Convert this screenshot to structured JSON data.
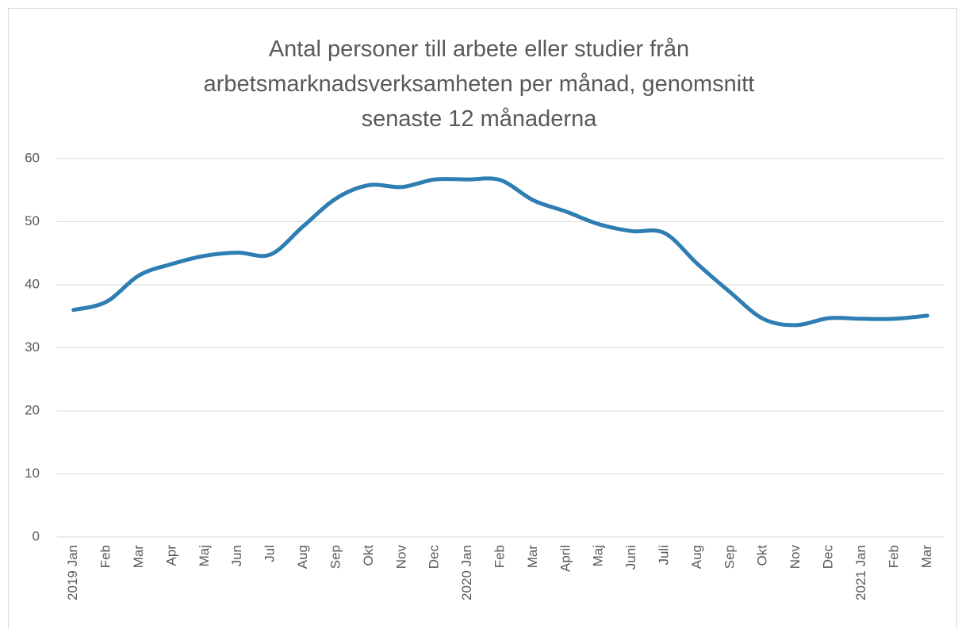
{
  "chart_data": {
    "type": "line",
    "title": "Antal personer till arbete eller studier från arbetsmarknadsverksamheten per månad, genomsnitt senaste 12 månaderna",
    "categories": [
      "2019 Jan",
      "Feb",
      "Mar",
      "Apr",
      "Maj",
      "Jun",
      "Jul",
      "Aug",
      "Sep",
      "Okt",
      "Nov",
      "Dec",
      "2020 Jan",
      "Feb",
      "Mar",
      "April",
      "Maj",
      "Juni",
      "Juli",
      "Aug",
      "Sep",
      "Okt",
      "Nov",
      "Dec",
      "2021 Jan",
      "Feb",
      "Mar"
    ],
    "values": [
      36.0,
      37.3,
      41.5,
      43.3,
      44.6,
      45.1,
      44.8,
      49.3,
      53.7,
      55.8,
      55.5,
      56.7,
      56.7,
      56.6,
      53.4,
      51.6,
      49.6,
      48.5,
      48.2,
      43.3,
      38.8,
      34.6,
      33.6,
      34.7,
      34.6,
      34.6,
      35.1
    ],
    "color": "#2e7db3",
    "ylim": [
      0,
      60
    ],
    "yticks": [
      0,
      10,
      20,
      30,
      40,
      50,
      60
    ],
    "grid": true
  }
}
